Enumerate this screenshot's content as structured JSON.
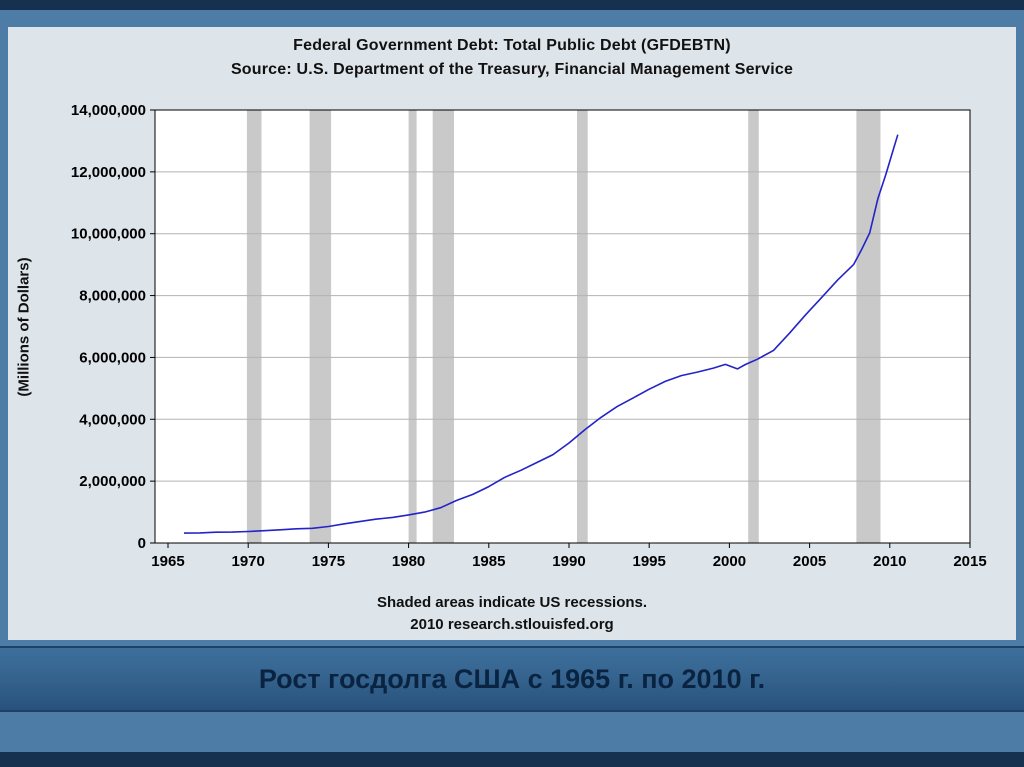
{
  "slide": {
    "caption": "Рост госдолга США с 1965 г. по 2010 г."
  },
  "chart_data": {
    "type": "line",
    "title": "Federal Government Debt: Total Public Debt (GFDEBTN)",
    "subtitle": "Source: U.S. Department of the Treasury, Financial Management Service",
    "ylabel": "(Millions of Dollars)",
    "footnote1": "Shaded areas indicate US recessions.",
    "footnote2": "2010 research.stlouisfed.org",
    "grid": "horizontal",
    "legend": "none",
    "xlim": [
      1964.19,
      2015
    ],
    "ylim": [
      0,
      14000000
    ],
    "xticks": [
      1965,
      1970,
      1975,
      1980,
      1985,
      1990,
      1995,
      2000,
      2005,
      2010,
      2015
    ],
    "yticks": [
      0,
      2000000,
      4000000,
      6000000,
      8000000,
      10000000,
      12000000,
      14000000
    ],
    "ytick_labels": [
      "0",
      "2,000,000",
      "4,000,000",
      "6,000,000",
      "8,000,000",
      "10,000,000",
      "12,000,000",
      "14,000,000"
    ],
    "line_color": "#2323c8",
    "recession_color": "#c9c9c9",
    "grid_color": "#b3b3b3",
    "axis_color": "#000000",
    "plot_bg": "#ffffff",
    "recessions": [
      [
        1969.92,
        1970.83
      ],
      [
        1973.83,
        1975.17
      ],
      [
        1980.0,
        1980.5
      ],
      [
        1981.5,
        1982.83
      ],
      [
        1990.5,
        1991.17
      ],
      [
        2001.17,
        2001.83
      ],
      [
        2007.92,
        2009.42
      ]
    ],
    "series": [
      {
        "name": "GFDEBTN",
        "x": [
          1966,
          1967,
          1968,
          1969,
          1970,
          1971,
          1972,
          1973,
          1974,
          1975,
          1976,
          1977,
          1978,
          1979,
          1980,
          1981,
          1982,
          1983,
          1984,
          1985,
          1986,
          1987,
          1988,
          1989,
          1990,
          1991,
          1992,
          1993,
          1994,
          1995,
          1996,
          1997,
          1998,
          1999,
          1999.75,
          2000.5,
          2001,
          2001.75,
          2002.75,
          2003.75,
          2004.75,
          2005.75,
          2006.75,
          2007.75,
          2008.25,
          2008.75,
          2009.25,
          2009.75,
          2010.25,
          2010.5
        ],
        "y": [
          320000,
          326000,
          348000,
          354000,
          371000,
          398000,
          427000,
          458000,
          475000,
          533000,
          620000,
          699000,
          772000,
          827000,
          908000,
          998000,
          1142000,
          1377000,
          1572000,
          1823000,
          2125000,
          2350000,
          2602000,
          2857000,
          3233000,
          3665000,
          4065000,
          4411000,
          4693000,
          4974000,
          5225000,
          5413000,
          5526000,
          5656000,
          5776000,
          5629000,
          5770000,
          5943000,
          6228000,
          6783000,
          7379000,
          7933000,
          8507000,
          9008000,
          9492000,
          10025000,
          11127000,
          11910000,
          12773000,
          13202000
        ]
      }
    ]
  }
}
